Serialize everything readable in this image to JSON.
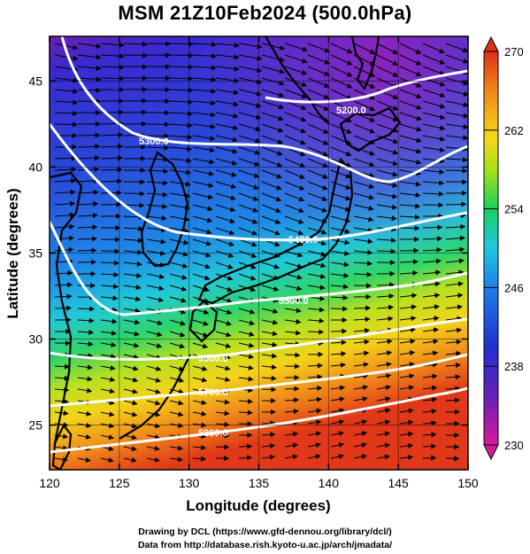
{
  "title": "MSM 21Z10Feb2024 (500.0hPa)",
  "credits": {
    "line1": "Drawing by DCL (https://www.gfd-dennou.org/library/dcl/)",
    "line2": "Data from http://database.rish.kyoto-u.ac.jp/arch/jmadata/"
  },
  "map": {
    "xlabel": "Longitude (degrees)",
    "ylabel": "Latitude  (degrees)",
    "lon_range": [
      120,
      150
    ],
    "lat_range": [
      22.4,
      47.6
    ],
    "lon_ticks": [
      "120",
      "125",
      "130",
      "135",
      "140",
      "145",
      "150"
    ],
    "lat_ticks": [
      "25",
      "30",
      "35",
      "40",
      "45"
    ],
    "grid": true,
    "field": "temperature (shaded), geopotential height (white contours), wind (vectors)",
    "height_contours": [
      {
        "label": "5200.0",
        "level": 5200
      },
      {
        "label": "5300.0",
        "level": 5300
      },
      {
        "label": "5400.0",
        "level": 5400
      },
      {
        "label": "5500.0",
        "level": 5500
      },
      {
        "label": "5600.0",
        "level": 5600
      },
      {
        "label": "5700.0",
        "level": 5700
      },
      {
        "label": "5800.0",
        "level": 5800
      }
    ]
  },
  "colorbar": {
    "min": 230,
    "max": 270,
    "tick_labels": [
      "270",
      "262",
      "254",
      "246",
      "238",
      "230"
    ],
    "colors": [
      "#e02a8a",
      "#7a20b8",
      "#2030d0",
      "#1e7ae8",
      "#20c8e0",
      "#18d060",
      "#a8e018",
      "#f4d818",
      "#f08818",
      "#e03018"
    ]
  }
}
